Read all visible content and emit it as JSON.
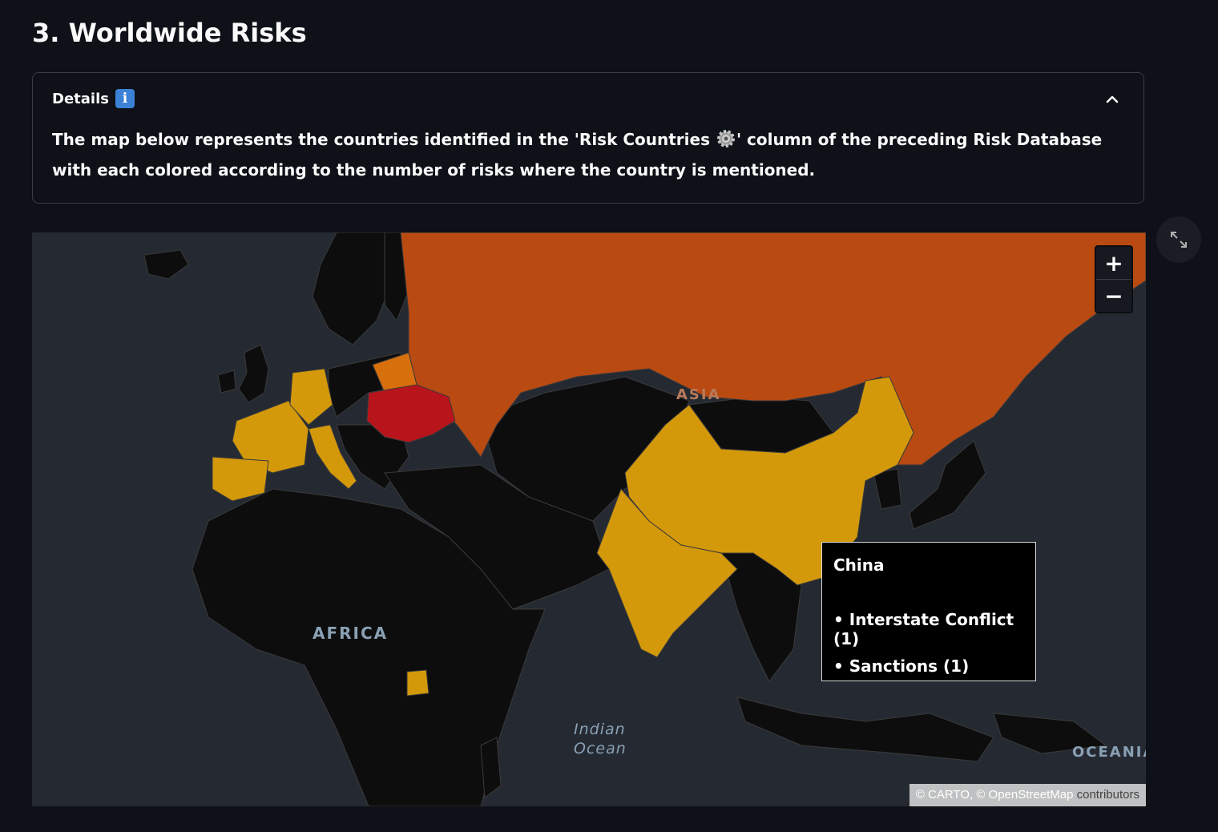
{
  "page": {
    "title": "3. Worldwide Risks"
  },
  "details": {
    "label": "Details",
    "icon": "info-icon",
    "collapse_icon": "chevron-up-icon",
    "text_before": "The map below represents the countries identified in the 'Risk Countries",
    "text_after": "' column of the preceding Risk Database with each colored according to the number of risks where the country is mentioned."
  },
  "map": {
    "zoom_in_label": "+",
    "zoom_out_label": "−",
    "region_labels": {
      "asia": "ASIA",
      "africa": "AFRICA",
      "ocean_line1": "Indian",
      "ocean_line2": "Ocean",
      "oceania": "OCEANIA"
    },
    "attribution": {
      "carto": "© CARTO, © OpenStreetMap",
      "contributors": " contributors"
    },
    "colors": {
      "ocean": "#252a32",
      "land": "#0d0d0d",
      "borders": "#3a3a3a",
      "level_1": "#d4990a",
      "level_2": "#d86f0d",
      "level_3": "#b94a12",
      "level_4": "#b8141b"
    },
    "highlighted_countries": [
      {
        "name": "Russia",
        "level": "level_3"
      },
      {
        "name": "Ukraine",
        "level": "level_4"
      },
      {
        "name": "Belarus",
        "level": "level_2"
      },
      {
        "name": "China",
        "level": "level_1"
      },
      {
        "name": "India",
        "level": "level_1"
      },
      {
        "name": "France",
        "level": "level_1"
      },
      {
        "name": "Germany",
        "level": "level_1"
      },
      {
        "name": "Italy",
        "level": "level_1"
      },
      {
        "name": "Spain",
        "level": "level_1"
      },
      {
        "name": "Uganda",
        "level": "level_1"
      }
    ],
    "tooltip": {
      "country": "China",
      "items": [
        "Interstate Conflict (1)",
        "Sanctions (1)"
      ]
    }
  },
  "toolbar": {
    "expand_icon": "expand-icon"
  }
}
